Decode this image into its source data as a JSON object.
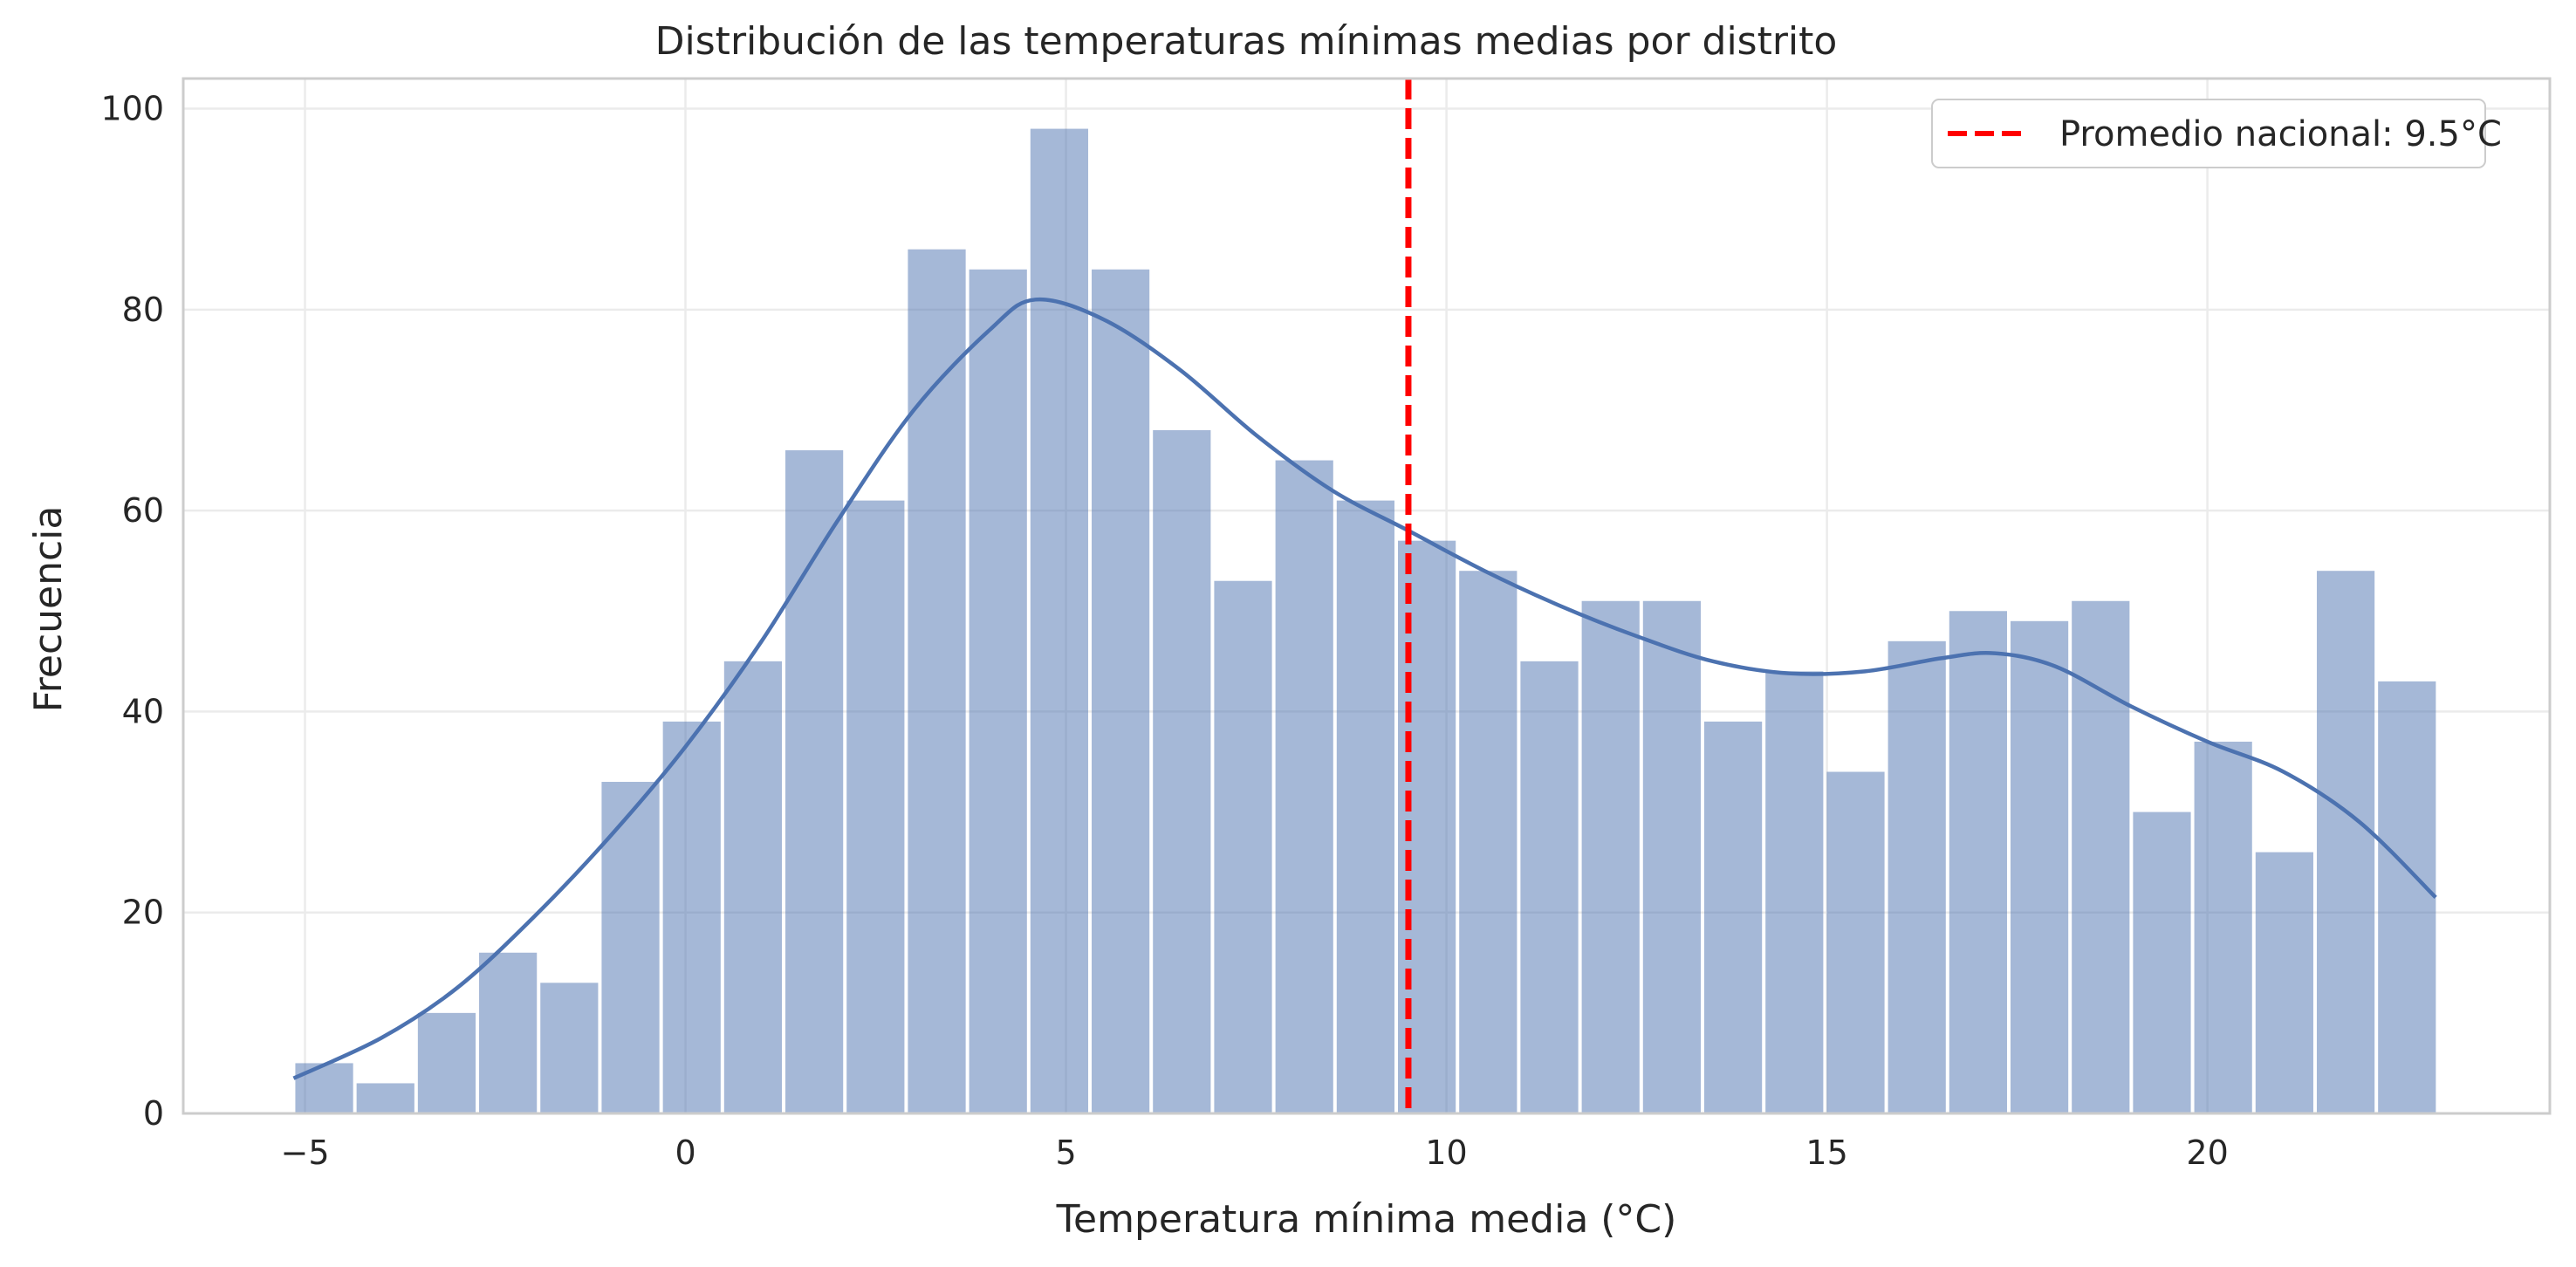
{
  "chart_data": {
    "type": "histogram",
    "title": "Distribución de las temperaturas mínimas medias por distrito",
    "xlabel": "Temperatura mínima media (°C)",
    "ylabel": "Frecuencia",
    "xlim": [
      -6.6,
      24.5
    ],
    "ylim": [
      0,
      103
    ],
    "xticks": [
      -5,
      0,
      5,
      10,
      15,
      20
    ],
    "xtick_labels": [
      "−5",
      "0",
      "5",
      "10",
      "15",
      "20"
    ],
    "yticks": [
      0,
      20,
      40,
      60,
      80,
      100
    ],
    "ytick_labels": [
      "0",
      "20",
      "40",
      "60",
      "80",
      "100"
    ],
    "grid": true,
    "bar_color": "#4c72b0",
    "bar_opacity": 0.5,
    "bins": {
      "start": -5.15,
      "width": 0.805,
      "counts": [
        5,
        3,
        10,
        16,
        13,
        33,
        39,
        45,
        66,
        61,
        86,
        84,
        98,
        84,
        68,
        53,
        65,
        61,
        57,
        54,
        45,
        51,
        51,
        39,
        44,
        34,
        47,
        50,
        49,
        51,
        30,
        37,
        26,
        54,
        43
      ]
    },
    "kde": {
      "color": "#4c72b0",
      "x": [
        -5.15,
        -4,
        -3,
        -2,
        -1,
        0,
        1,
        2,
        3,
        4,
        4.6,
        5.5,
        6.5,
        7.5,
        8.5,
        9.5,
        10.5,
        11.5,
        12.5,
        13.5,
        14.5,
        15.5,
        16.5,
        17.2,
        18,
        19,
        20,
        21,
        22,
        23
      ],
      "y": [
        3.5,
        7.5,
        12.5,
        19.5,
        27.5,
        36.5,
        47,
        59,
        70,
        78,
        81,
        79,
        74,
        67.5,
        62,
        58,
        54,
        50.5,
        47.5,
        45,
        43.8,
        44,
        45.3,
        45.8,
        44.5,
        40.5,
        37,
        34,
        29,
        21.5
      ]
    },
    "reference_line": {
      "x": 9.5,
      "color": "#ff0000",
      "style": "dashed",
      "label": "Promedio nacional: 9.5°C"
    },
    "legend": {
      "position": "top-right",
      "entries": [
        "Promedio nacional: 9.5°C"
      ]
    }
  }
}
